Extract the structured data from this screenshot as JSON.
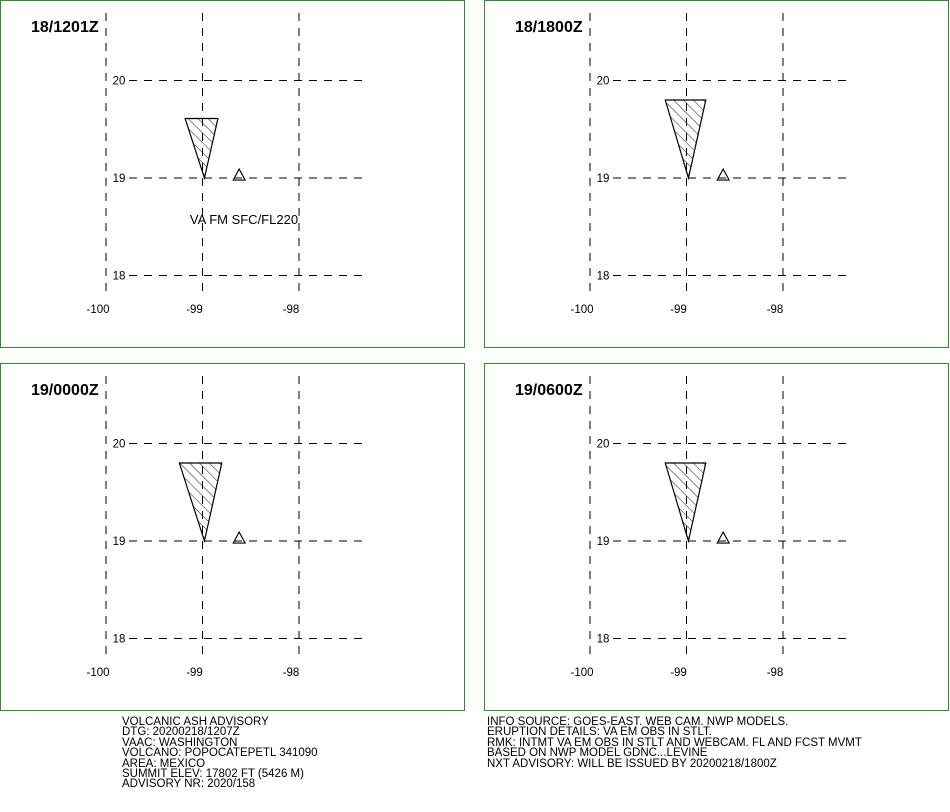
{
  "colors": {
    "panel_border": "#2e8b2e",
    "grid": "#000000",
    "ash": "#000000"
  },
  "panels": [
    {
      "time": "18/1201Z",
      "label": "VA FM SFC/FL220",
      "ash_polygon": [
        [
          -99.18,
          19.61
        ],
        [
          -98.84,
          19.61
        ],
        [
          -98.98,
          19.0
        ]
      ]
    },
    {
      "time": "18/1800Z",
      "label": "",
      "ash_polygon": [
        [
          -99.22,
          19.8
        ],
        [
          -98.8,
          19.8
        ],
        [
          -98.98,
          19.0
        ]
      ]
    },
    {
      "time": "19/0000Z",
      "label": "",
      "ash_polygon": [
        [
          -99.24,
          19.8
        ],
        [
          -98.8,
          19.8
        ],
        [
          -98.98,
          19.0
        ]
      ]
    },
    {
      "time": "19/0600Z",
      "label": "",
      "ash_polygon": [
        [
          -99.22,
          19.8
        ],
        [
          -98.8,
          19.8
        ],
        [
          -98.98,
          19.0
        ]
      ]
    }
  ],
  "map": {
    "lon_labels": [
      "-100",
      "-99",
      "-98"
    ],
    "lat_labels": [
      "20",
      "19",
      "18"
    ],
    "lon_values": [
      -100,
      -99,
      -98
    ],
    "lat_values": [
      20,
      19,
      18
    ],
    "volcano": {
      "lon": -98.62,
      "lat": 19.02
    }
  },
  "advisory_left": [
    "VOLCANIC ASH ADVISORY",
    "DTG: 20200218/1207Z",
    "VAAC: WASHINGTON",
    "VOLCANO: POPOCATEPETL 341090",
    "AREA: MEXICO",
    "SUMMIT ELEV: 17802 FT (5426 M)",
    "ADVISORY NR: 2020/158"
  ],
  "advisory_right": [
    "INFO SOURCE: GOES-EAST. WEB CAM. NWP MODELS.",
    "ERUPTION DETAILS: VA EM OBS IN STLT.",
    "RMK: INTMT VA EM OBS IN STLT AND WEBCAM. FL AND FCST MVMT",
    "BASED ON NWP MODEL GDNC...LEVINE",
    "NXT ADVISORY: WILL BE ISSUED BY 20200218/1800Z"
  ]
}
